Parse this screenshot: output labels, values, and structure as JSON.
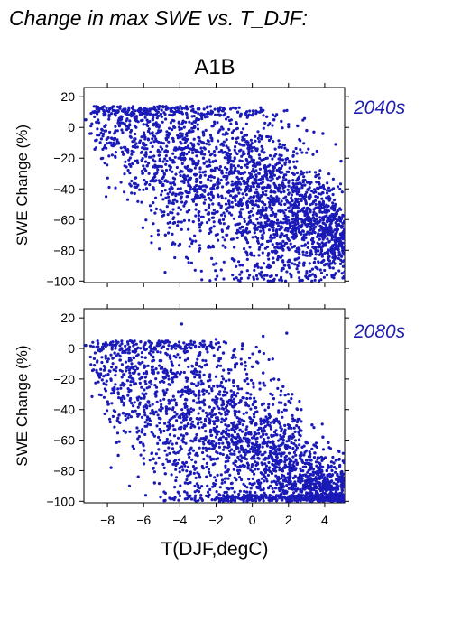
{
  "title": "Change in max SWE vs. T_DJF:",
  "scenario": "A1B",
  "xlabel": "T(DJF,degC)",
  "colors": {
    "points": "#1a1ab8",
    "period_label": "#1f1fb0",
    "axis": "#000000"
  },
  "chart_data": [
    {
      "type": "scatter",
      "period": "2040s",
      "xlabel": "",
      "ylabel": "SWE Change (%)",
      "xlim": [
        -9.3,
        5.1
      ],
      "ylim": [
        -101,
        26
      ],
      "xticks": [
        -8,
        -6,
        -4,
        -2,
        0,
        2,
        4
      ],
      "yticks": [
        20,
        0,
        -20,
        -40,
        -60,
        -80,
        -100
      ],
      "xtick_labels_shown": false,
      "grid": false,
      "note": "Dense cloud of ~3000 points; representative sample listed (°C, %).",
      "points": [
        [
          -9.2,
          5
        ],
        [
          -8.6,
          10
        ],
        [
          -8.2,
          11
        ],
        [
          -7.9,
          8
        ],
        [
          -7.6,
          11
        ],
        [
          -7.4,
          3
        ],
        [
          -7.2,
          7
        ],
        [
          -6.9,
          10
        ],
        [
          -6.6,
          8
        ],
        [
          -6.4,
          6
        ],
        [
          -6.2,
          10
        ],
        [
          -6.0,
          2
        ],
        [
          -5.8,
          9
        ],
        [
          -5.5,
          5
        ],
        [
          -5.2,
          10
        ],
        [
          -5.0,
          7
        ],
        [
          -4.7,
          12
        ],
        [
          -4.4,
          8
        ],
        [
          -4.2,
          13
        ],
        [
          -3.9,
          10
        ],
        [
          -3.6,
          12
        ],
        [
          -3.3,
          14
        ],
        [
          -3.0,
          12
        ],
        [
          -2.8,
          9
        ],
        [
          -2.5,
          13
        ],
        [
          -2.2,
          10
        ],
        [
          -1.9,
          12
        ],
        [
          -1.5,
          9
        ],
        [
          -1.2,
          12
        ],
        [
          -0.8,
          10
        ],
        [
          -0.4,
          9
        ],
        [
          0.0,
          8
        ],
        [
          0.4,
          10
        ],
        [
          0.8,
          7
        ],
        [
          1.2,
          5
        ],
        [
          1.6,
          4
        ],
        [
          2.0,
          2
        ],
        [
          2.5,
          1
        ],
        [
          3.0,
          -2
        ],
        [
          3.4,
          -3
        ],
        [
          3.9,
          -4
        ],
        [
          4.6,
          -11
        ],
        [
          4.9,
          -22
        ],
        [
          -6.7,
          -38
        ],
        [
          -6.5,
          -43
        ],
        [
          -6.1,
          -16
        ],
        [
          -5.8,
          -25
        ],
        [
          -5.6,
          -10
        ],
        [
          -5.3,
          -30
        ],
        [
          -5.1,
          -36
        ],
        [
          -5.0,
          -55
        ],
        [
          -4.8,
          -70
        ],
        [
          -4.6,
          -48
        ],
        [
          -4.5,
          -26
        ],
        [
          -4.3,
          -62
        ],
        [
          -4.1,
          -40
        ],
        [
          -4.0,
          -76
        ],
        [
          -3.8,
          -18
        ],
        [
          -3.6,
          -55
        ],
        [
          -3.4,
          -33
        ],
        [
          -3.3,
          -74
        ],
        [
          -3.1,
          -45
        ],
        [
          -2.9,
          -65
        ],
        [
          -2.7,
          -20
        ],
        [
          -2.6,
          -38
        ],
        [
          -2.4,
          -52
        ],
        [
          -2.2,
          -28
        ],
        [
          -2.0,
          -70
        ],
        [
          -1.9,
          -44
        ],
        [
          -1.7,
          -15
        ],
        [
          -1.6,
          -60
        ],
        [
          -1.4,
          -33
        ],
        [
          -1.3,
          -48
        ],
        [
          -1.1,
          -22
        ],
        [
          -1.0,
          -78
        ],
        [
          -0.8,
          -40
        ],
        [
          -0.7,
          -58
        ],
        [
          -0.5,
          -30
        ],
        [
          -0.3,
          -66
        ],
        [
          -0.2,
          -12
        ],
        [
          0.0,
          -50
        ],
        [
          0.2,
          -36
        ],
        [
          0.3,
          -74
        ],
        [
          0.5,
          -55
        ],
        [
          0.7,
          -25
        ],
        [
          0.9,
          -82
        ],
        [
          1.0,
          -64
        ],
        [
          1.2,
          -42
        ],
        [
          1.4,
          -86
        ],
        [
          1.6,
          -70
        ],
        [
          1.8,
          -50
        ],
        [
          2.0,
          -90
        ],
        [
          2.2,
          -78
        ],
        [
          2.4,
          -60
        ],
        [
          2.6,
          -88
        ],
        [
          2.8,
          -72
        ],
        [
          3.0,
          -95
        ],
        [
          3.2,
          -82
        ],
        [
          3.4,
          -66
        ],
        [
          3.6,
          -92
        ],
        [
          3.8,
          -78
        ],
        [
          4.0,
          -55
        ],
        [
          4.2,
          -86
        ],
        [
          4.4,
          -70
        ],
        [
          4.6,
          -95
        ],
        [
          4.8,
          -60
        ],
        [
          5.0,
          -98
        ]
      ]
    },
    {
      "type": "scatter",
      "period": "2080s",
      "xlabel": "T(DJF,degC)",
      "ylabel": "SWE Change (%)",
      "xlim": [
        -9.3,
        5.1
      ],
      "ylim": [
        -101,
        26
      ],
      "xticks": [
        -8,
        -6,
        -4,
        -2,
        0,
        2,
        4
      ],
      "yticks": [
        20,
        0,
        -20,
        -40,
        -60,
        -80,
        -100
      ],
      "xtick_labels_shown": true,
      "grid": false,
      "note": "Dense cloud of ~3000 points; representative sample listed (°C, %).",
      "points": [
        [
          -9.2,
          2
        ],
        [
          -8.4,
          -1
        ],
        [
          -8.1,
          2
        ],
        [
          -7.6,
          -3
        ],
        [
          -7.3,
          -5
        ],
        [
          -6.8,
          -8
        ],
        [
          -6.6,
          -2
        ],
        [
          -6.2,
          -10
        ],
        [
          -5.9,
          -6
        ],
        [
          -5.5,
          -12
        ],
        [
          -5.1,
          -8
        ],
        [
          -4.7,
          -4
        ],
        [
          -4.3,
          2
        ],
        [
          -4.0,
          -6
        ],
        [
          -3.6,
          -2
        ],
        [
          -3.2,
          4
        ],
        [
          -2.9,
          -4
        ],
        [
          -2.5,
          0
        ],
        [
          -2.0,
          3
        ],
        [
          -1.6,
          -3
        ],
        [
          -1.1,
          -6
        ],
        [
          -0.6,
          -10
        ],
        [
          0.0,
          -12
        ],
        [
          0.6,
          -16
        ],
        [
          1.2,
          -20
        ],
        [
          1.7,
          -25
        ],
        [
          2.2,
          -30
        ],
        [
          2.7,
          -40
        ],
        [
          3.3,
          -50
        ],
        [
          3.9,
          -58
        ],
        [
          4.5,
          -75
        ],
        [
          4.9,
          -90
        ],
        [
          -3.9,
          16
        ],
        [
          -2.0,
          6
        ],
        [
          0.6,
          8
        ],
        [
          1.9,
          10
        ],
        [
          -7.8,
          -78
        ],
        [
          -7.4,
          -70
        ],
        [
          -7.0,
          -55
        ],
        [
          -6.6,
          -64
        ],
        [
          -6.3,
          -84
        ],
        [
          -6.0,
          -72
        ],
        [
          -5.7,
          -46
        ],
        [
          -5.4,
          -88
        ],
        [
          -5.1,
          -60
        ],
        [
          -4.8,
          -82
        ],
        [
          -4.6,
          -36
        ],
        [
          -4.3,
          -74
        ],
        [
          -4.0,
          -52
        ],
        [
          -3.7,
          -88
        ],
        [
          -3.4,
          -66
        ],
        [
          -3.2,
          -30
        ],
        [
          -2.9,
          -84
        ],
        [
          -2.6,
          -60
        ],
        [
          -2.4,
          -46
        ],
        [
          -2.1,
          -90
        ],
        [
          -1.9,
          -72
        ],
        [
          -1.6,
          -54
        ],
        [
          -1.3,
          -92
        ],
        [
          -1.1,
          -38
        ],
        [
          -0.8,
          -80
        ],
        [
          -0.6,
          -64
        ],
        [
          -0.3,
          -94
        ],
        [
          0.0,
          -76
        ],
        [
          0.2,
          -56
        ],
        [
          0.5,
          -96
        ],
        [
          0.7,
          -84
        ],
        [
          1.0,
          -70
        ],
        [
          1.2,
          -98
        ],
        [
          1.5,
          -88
        ],
        [
          1.7,
          -62
        ],
        [
          2.0,
          -97
        ],
        [
          2.2,
          -80
        ],
        [
          2.5,
          -92
        ],
        [
          2.7,
          -70
        ],
        [
          3.0,
          -99
        ],
        [
          3.2,
          -86
        ],
        [
          3.5,
          -96
        ],
        [
          3.7,
          -78
        ],
        [
          4.0,
          -99
        ],
        [
          4.3,
          -90
        ],
        [
          4.6,
          -98
        ],
        [
          4.8,
          -84
        ],
        [
          5.0,
          -100
        ]
      ]
    }
  ]
}
